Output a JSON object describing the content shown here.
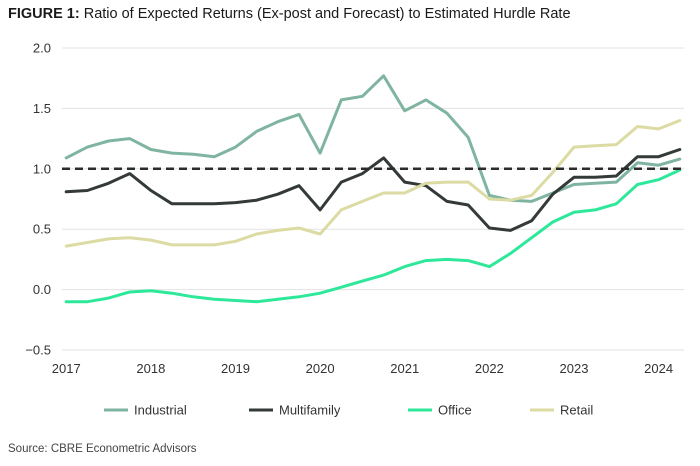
{
  "title_lead": "FIGURE 1:",
  "title_rest": " Ratio of Expected Returns (Ex-post and Forecast) to Estimated Hurdle Rate",
  "source": "Source: CBRE Econometric Advisors",
  "chart_data": {
    "type": "line",
    "title": "FIGURE 1: Ratio of Expected Returns (Ex-post and Forecast) to Estimated Hurdle Rate",
    "xlabel": "",
    "ylabel": "",
    "xlim": [
      2016.95,
      2024.3
    ],
    "ylim": [
      -0.5,
      2.0
    ],
    "y_ticks": [
      2.0,
      1.5,
      1.0,
      0.5,
      0.0,
      -0.5
    ],
    "y_tick_labels": [
      "2.0",
      "1.5",
      "1.0",
      "0.5",
      "0.0",
      "−0.5"
    ],
    "x_ticks": [
      2017,
      2018,
      2019,
      2020,
      2021,
      2022,
      2023,
      2024
    ],
    "x_tick_labels": [
      "2017",
      "2018",
      "2019",
      "2020",
      "2021",
      "2022",
      "2023",
      "2024"
    ],
    "grid": "horizontal",
    "legend_position": "bottom",
    "reference_line": {
      "y": 1.0,
      "style": "dashed",
      "color": "#2b2b2b"
    },
    "x": [
      2017.0,
      2017.25,
      2017.5,
      2017.75,
      2018.0,
      2018.25,
      2018.5,
      2018.75,
      2019.0,
      2019.25,
      2019.5,
      2019.75,
      2020.0,
      2020.25,
      2020.5,
      2020.75,
      2021.0,
      2021.25,
      2021.5,
      2021.75,
      2022.0,
      2022.25,
      2022.5,
      2022.75,
      2023.0,
      2023.25,
      2023.5,
      2023.75,
      2024.0,
      2024.25
    ],
    "series": [
      {
        "name": "Industrial",
        "color": "#7fb5a0",
        "values": [
          1.09,
          1.18,
          1.23,
          1.25,
          1.16,
          1.13,
          1.12,
          1.1,
          1.18,
          1.31,
          1.39,
          1.45,
          1.13,
          1.57,
          1.6,
          1.77,
          1.48,
          1.57,
          1.46,
          1.26,
          0.78,
          0.74,
          0.73,
          0.8,
          0.87,
          0.88,
          0.89,
          1.05,
          1.03,
          1.08
        ]
      },
      {
        "name": "Multifamily",
        "color": "#333a38",
        "values": [
          0.81,
          0.82,
          0.88,
          0.96,
          0.82,
          0.71,
          0.71,
          0.71,
          0.72,
          0.74,
          0.79,
          0.86,
          0.66,
          0.89,
          0.96,
          1.09,
          0.89,
          0.86,
          0.73,
          0.7,
          0.51,
          0.49,
          0.57,
          0.79,
          0.93,
          0.93,
          0.94,
          1.1,
          1.1,
          1.16
        ]
      },
      {
        "name": "Office",
        "color": "#2ee89a",
        "values": [
          -0.1,
          -0.1,
          -0.07,
          -0.02,
          -0.01,
          -0.03,
          -0.06,
          -0.08,
          -0.09,
          -0.1,
          -0.08,
          -0.06,
          -0.03,
          0.02,
          0.07,
          0.12,
          0.19,
          0.24,
          0.25,
          0.24,
          0.19,
          0.3,
          0.43,
          0.56,
          0.64,
          0.66,
          0.71,
          0.87,
          0.91,
          0.99
        ]
      },
      {
        "name": "Retail",
        "color": "#dcdba3",
        "values": [
          0.36,
          0.39,
          0.42,
          0.43,
          0.41,
          0.37,
          0.37,
          0.37,
          0.4,
          0.46,
          0.49,
          0.51,
          0.46,
          0.66,
          0.73,
          0.8,
          0.8,
          0.88,
          0.89,
          0.89,
          0.75,
          0.74,
          0.78,
          0.97,
          1.18,
          1.19,
          1.2,
          1.35,
          1.33,
          1.4
        ]
      }
    ]
  }
}
